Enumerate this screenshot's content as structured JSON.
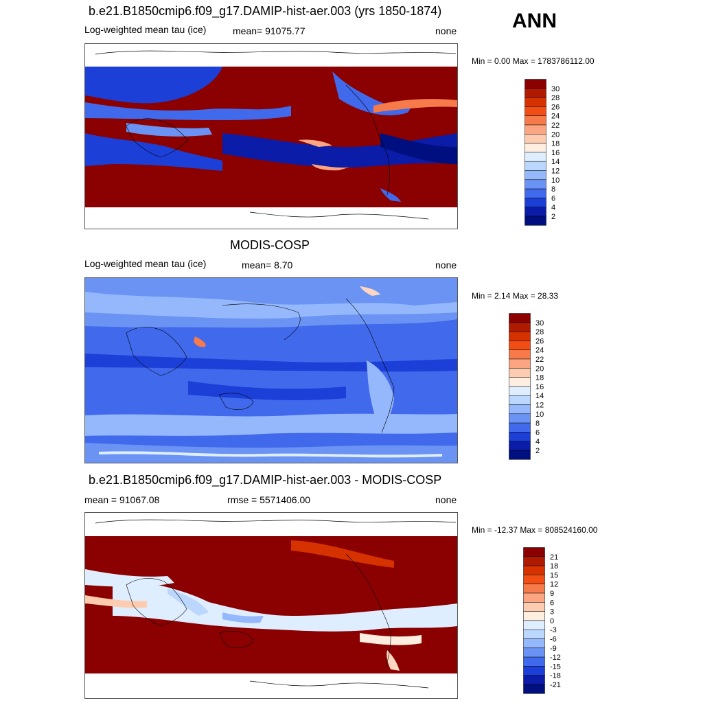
{
  "season": "ANN",
  "panels": [
    {
      "title": "b.e21.B1850cmip6.f09_g17.DAMIP-hist-aer.003 (yrs 1850-1874)",
      "left_label": "Log-weighted mean tau (ice)",
      "stat_label": "mean= 91075.77",
      "units": "none",
      "minmax": "Min =   0.00 Max = 1783786112.00"
    },
    {
      "title": "MODIS-COSP",
      "left_label": "Log-weighted mean tau (ice)",
      "stat_label": "mean=   8.70",
      "units": "none",
      "minmax": "Min =   2.14 Max =  28.33"
    },
    {
      "title": "b.e21.B1850cmip6.f09_g17.DAMIP-hist-aer.003 - MODIS-COSP",
      "left_label": "mean = 91067.08",
      "stat_label": "rmse = 5571406.00",
      "units": "none",
      "minmax": "Min = -12.37 Max = 808524160.00"
    }
  ],
  "colorbars": [
    {
      "labels": [
        "30",
        "28",
        "26",
        "24",
        "22",
        "20",
        "18",
        "16",
        "14",
        "12",
        "10",
        "8",
        "6",
        "4",
        "2"
      ],
      "colors": [
        "#8b0000",
        "#b01a00",
        "#d63200",
        "#f04e14",
        "#f77a4a",
        "#fca582",
        "#fdcbb0",
        "#fdeee0",
        "#dfeeff",
        "#bcd7fd",
        "#94b8fb",
        "#6b93f4",
        "#4169ec",
        "#1c3fd8",
        "#0a1ca8",
        "#000f80"
      ]
    },
    {
      "labels": [
        "30",
        "28",
        "26",
        "24",
        "22",
        "20",
        "18",
        "16",
        "14",
        "12",
        "10",
        "8",
        "6",
        "4",
        "2"
      ],
      "colors": [
        "#8b0000",
        "#b01a00",
        "#d63200",
        "#f04e14",
        "#f77a4a",
        "#fca582",
        "#fdcbb0",
        "#fdeee0",
        "#dfeeff",
        "#bcd7fd",
        "#94b8fb",
        "#6b93f4",
        "#4169ec",
        "#1c3fd8",
        "#0a1ca8",
        "#000f80"
      ]
    },
    {
      "labels": [
        "21",
        "18",
        "15",
        "12",
        "9",
        "6",
        "3",
        "0",
        "-3",
        "-6",
        "-9",
        "-12",
        "-15",
        "-18",
        "-21"
      ],
      "colors": [
        "#8b0000",
        "#b01a00",
        "#d63200",
        "#f04e14",
        "#f77a4a",
        "#fca582",
        "#fdcbb0",
        "#fdeee0",
        "#dfeeff",
        "#bcd7fd",
        "#94b8fb",
        "#6b93f4",
        "#4169ec",
        "#1c3fd8",
        "#0a1ca8",
        "#000f80"
      ]
    }
  ],
  "chart_data": [
    {
      "type": "heatmap",
      "title": "b.e21.B1850cmip6.f09_g17.DAMIP-hist-aer.003 (yrs 1850-1874)",
      "variable": "Log-weighted mean tau (ice)",
      "mean": 91075.77,
      "min": 0.0,
      "max": 1783786112.0,
      "units": "none",
      "levels": [
        2,
        4,
        6,
        8,
        10,
        12,
        14,
        16,
        18,
        20,
        22,
        24,
        26,
        28,
        30
      ]
    },
    {
      "type": "heatmap",
      "title": "MODIS-COSP",
      "variable": "Log-weighted mean tau (ice)",
      "mean": 8.7,
      "min": 2.14,
      "max": 28.33,
      "units": "none",
      "levels": [
        2,
        4,
        6,
        8,
        10,
        12,
        14,
        16,
        18,
        20,
        22,
        24,
        26,
        28,
        30
      ]
    },
    {
      "type": "heatmap",
      "title": "b.e21.B1850cmip6.f09_g17.DAMIP-hist-aer.003 - MODIS-COSP",
      "mean": 91067.08,
      "rmse": 5571406.0,
      "min": -12.37,
      "max": 808524160.0,
      "units": "none",
      "levels": [
        -21,
        -18,
        -15,
        -12,
        -9,
        -6,
        -3,
        0,
        3,
        6,
        9,
        12,
        15,
        18,
        21
      ]
    }
  ]
}
